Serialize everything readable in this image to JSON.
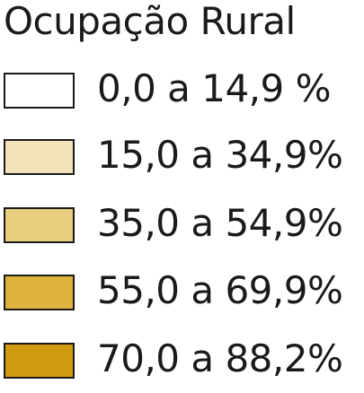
{
  "legend": {
    "title": "Ocupação Rural",
    "items": [
      {
        "label": "0,0 a 14,9 %",
        "color": "#ffffff"
      },
      {
        "label": "15,0 a 34,9%",
        "color": "#f3e3bb"
      },
      {
        "label": "35,0 a 54,9%",
        "color": "#e8cd7c"
      },
      {
        "label": "55,0 a 69,9%",
        "color": "#ddb33e"
      },
      {
        "label": "70,0 a 88,2%",
        "color": "#d19a0e"
      }
    ]
  }
}
